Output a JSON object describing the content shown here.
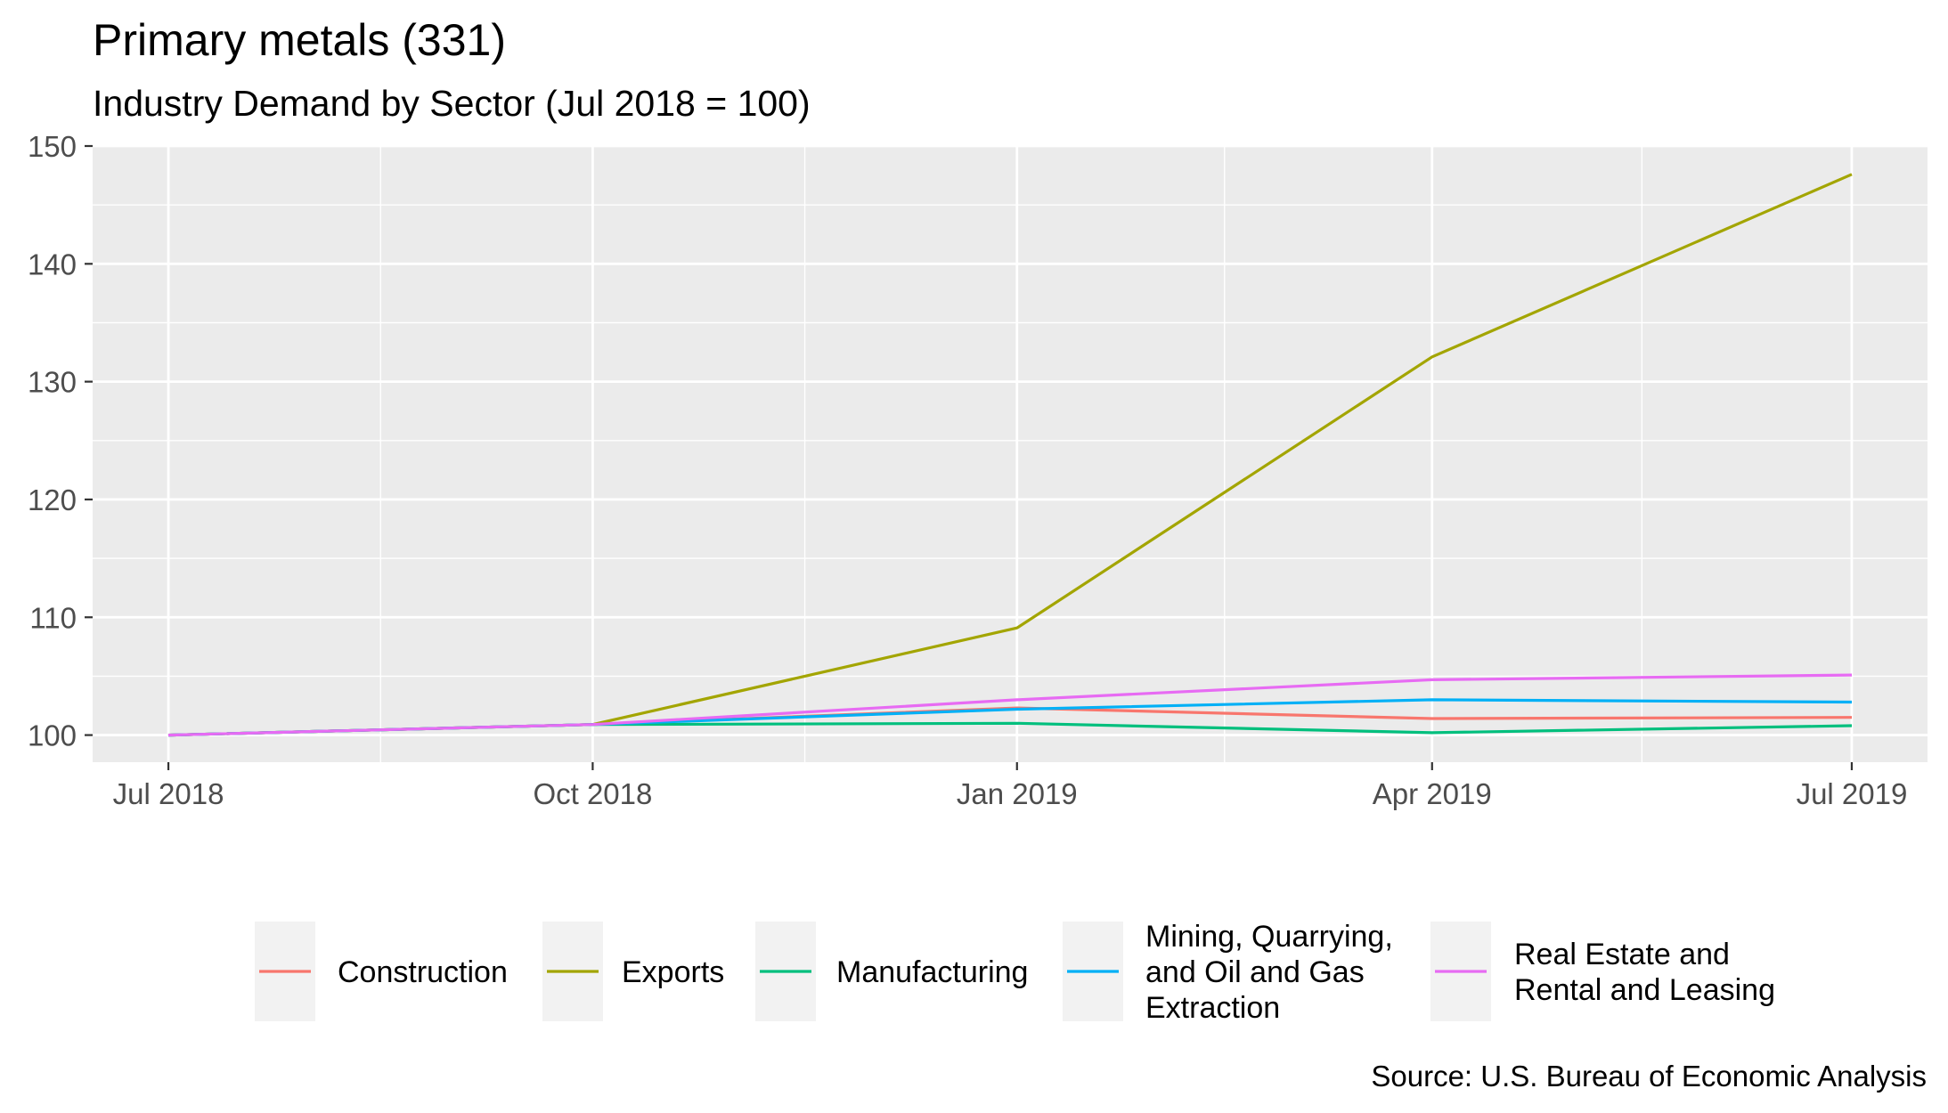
{
  "chart_data": {
    "type": "line",
    "title": "Primary metals (331)",
    "subtitle": "Industry Demand by Sector (Jul 2018 = 100)",
    "caption": "Source: U.S. Bureau of Economic Analysis",
    "xlabel": "",
    "ylabel": "",
    "x": [
      "2018-07-01",
      "2018-10-01",
      "2019-01-01",
      "2019-04-01",
      "2019-07-01"
    ],
    "x_ticks": [
      "Jul 2018",
      "Oct 2018",
      "Jan 2019",
      "Apr 2019",
      "Jul 2019"
    ],
    "y_ticks": [
      100,
      110,
      120,
      130,
      140,
      150
    ],
    "ylim": [
      97.7,
      150
    ],
    "grid": true,
    "legend_position": "bottom",
    "series": [
      {
        "name": "Construction",
        "color": "#F8766D",
        "values": [
          100,
          100.9,
          102.3,
          101.4,
          101.5
        ]
      },
      {
        "name": "Exports",
        "color": "#A3A500",
        "values": [
          100,
          100.9,
          109.1,
          132.1,
          147.6
        ]
      },
      {
        "name": "Manufacturing",
        "color": "#00BF7D",
        "values": [
          100,
          100.9,
          101.0,
          100.2,
          100.8
        ]
      },
      {
        "name": "Mining, Quarrying, and Oil and Gas Extraction",
        "legend_lines": [
          "Mining, Quarrying,",
          "and Oil and Gas",
          "Extraction"
        ],
        "color": "#00B0F6",
        "values": [
          100,
          100.9,
          102.2,
          103.0,
          102.8
        ]
      },
      {
        "name": "Real Estate and Rental and Leasing",
        "legend_lines": [
          "Real Estate and",
          "Rental and Leasing"
        ],
        "color": "#E76BF3",
        "values": [
          100,
          100.9,
          103.0,
          104.7,
          105.1
        ]
      }
    ]
  }
}
